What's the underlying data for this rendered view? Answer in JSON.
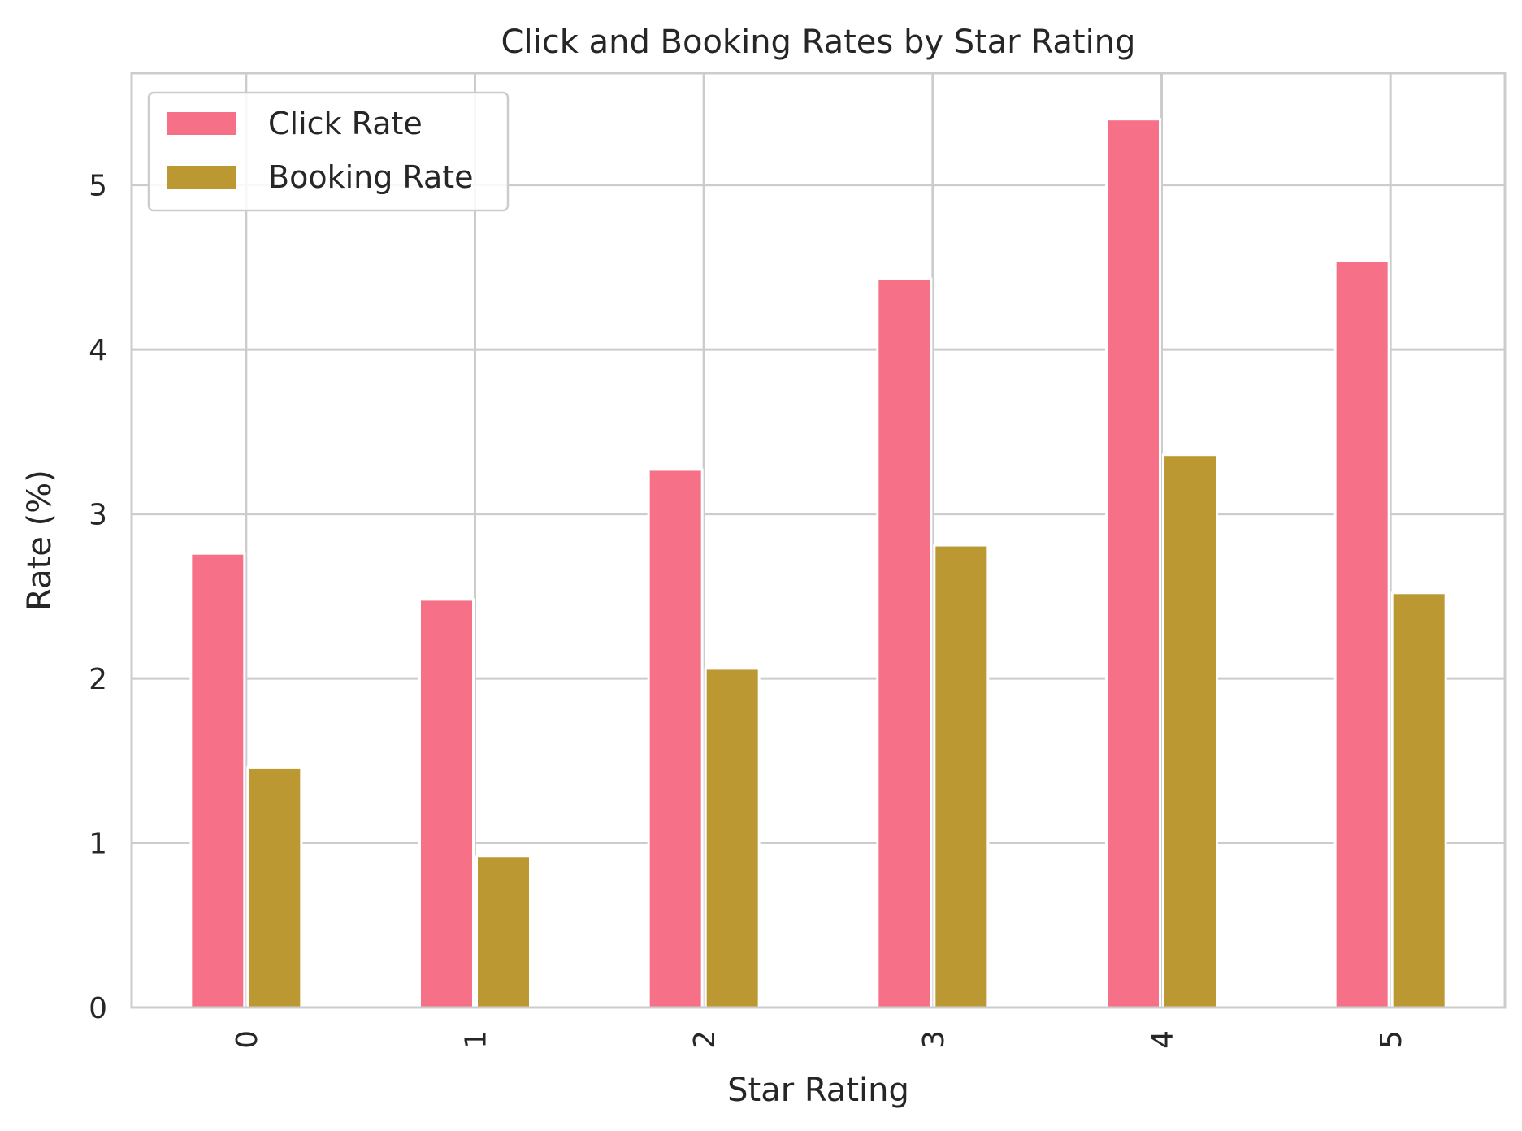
{
  "chart_data": {
    "type": "bar",
    "title": "Click and Booking Rates by Star Rating",
    "xlabel": "Star Rating",
    "ylabel": "Rate (%)",
    "categories": [
      "0",
      "1",
      "2",
      "3",
      "4",
      "5"
    ],
    "series": [
      {
        "name": "Click Rate",
        "color": "#f67088",
        "values": [
          2.76,
          2.48,
          3.27,
          4.43,
          5.4,
          4.54
        ]
      },
      {
        "name": "Booking Rate",
        "color": "#bb9832",
        "values": [
          1.46,
          0.92,
          2.06,
          2.81,
          3.36,
          2.52
        ]
      }
    ],
    "ylim": [
      0,
      5.68
    ],
    "yticks": [
      0,
      1,
      2,
      3,
      4,
      5
    ],
    "grid": true,
    "legend_position": "top-left",
    "x_tick_rotation": "vertical"
  }
}
